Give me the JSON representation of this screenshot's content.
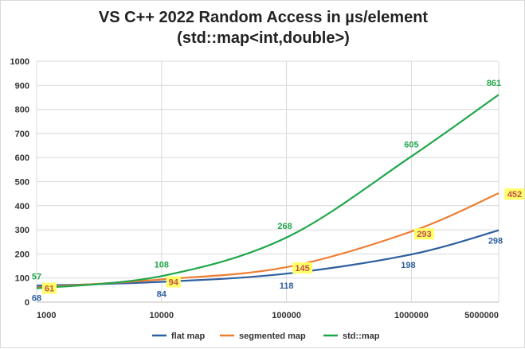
{
  "chart_data": {
    "type": "line",
    "title_line1": "VS C++ 2022 Random Access in µs/element",
    "title_line2": "(std::map<int,double>)",
    "x": [
      1000,
      10000,
      100000,
      1000000,
      5000000
    ],
    "x_tick_labels": [
      "1000",
      "10000",
      "100000",
      "1000000",
      "5000000"
    ],
    "x_scale": "log",
    "ylim": [
      0,
      1000
    ],
    "y_ticks": [
      0,
      100,
      200,
      300,
      400,
      500,
      600,
      700,
      800,
      900,
      1000
    ],
    "grid": true,
    "legend_position": "bottom",
    "series": [
      {
        "name": "flat map",
        "color": "#2e5f9e",
        "values": [
          68,
          84,
          118,
          198,
          298
        ],
        "highlight": false
      },
      {
        "name": "segmented map",
        "color": "#ed7d31",
        "values": [
          61,
          94,
          145,
          293,
          452
        ],
        "highlight": true
      },
      {
        "name": "std::map",
        "color": "#1fa64a",
        "values": [
          57,
          108,
          268,
          605,
          861
        ],
        "highlight": false
      }
    ]
  }
}
